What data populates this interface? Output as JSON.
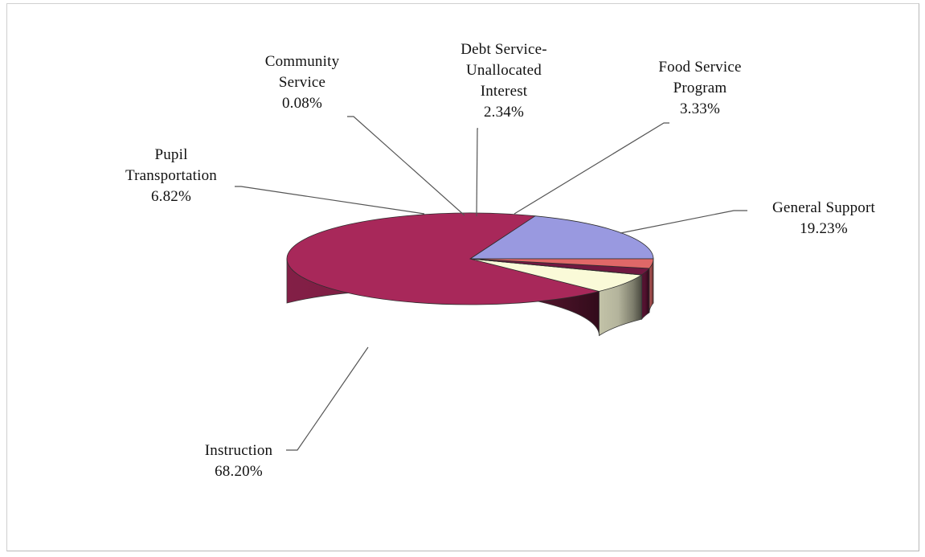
{
  "chart_data": {
    "type": "pie",
    "style": "3d",
    "title": "",
    "series": [
      {
        "slices": [
          {
            "label_lines": [
              "General Support"
            ],
            "value": 19.23,
            "value_text": "19.23%",
            "color": "#9999e0"
          },
          {
            "label_lines": [
              "Instruction"
            ],
            "value": 68.2,
            "value_text": "68.20%",
            "color": "#a8285a"
          },
          {
            "label_lines": [
              "Pupil",
              "Transportation"
            ],
            "value": 6.82,
            "value_text": "6.82%",
            "color": "#fafad8"
          },
          {
            "label_lines": [
              "Community",
              "Service"
            ],
            "value": 0.08,
            "value_text": "0.08%",
            "color": "#c4eef0"
          },
          {
            "label_lines": [
              "Debt Service-",
              "Unallocated",
              "Interest"
            ],
            "value": 2.34,
            "value_text": "2.34%",
            "color": "#701840"
          },
          {
            "label_lines": [
              "Food Service",
              "Program"
            ],
            "value": 3.33,
            "value_text": "3.33%",
            "color": "#e06868"
          }
        ]
      }
    ],
    "legend": "none"
  }
}
